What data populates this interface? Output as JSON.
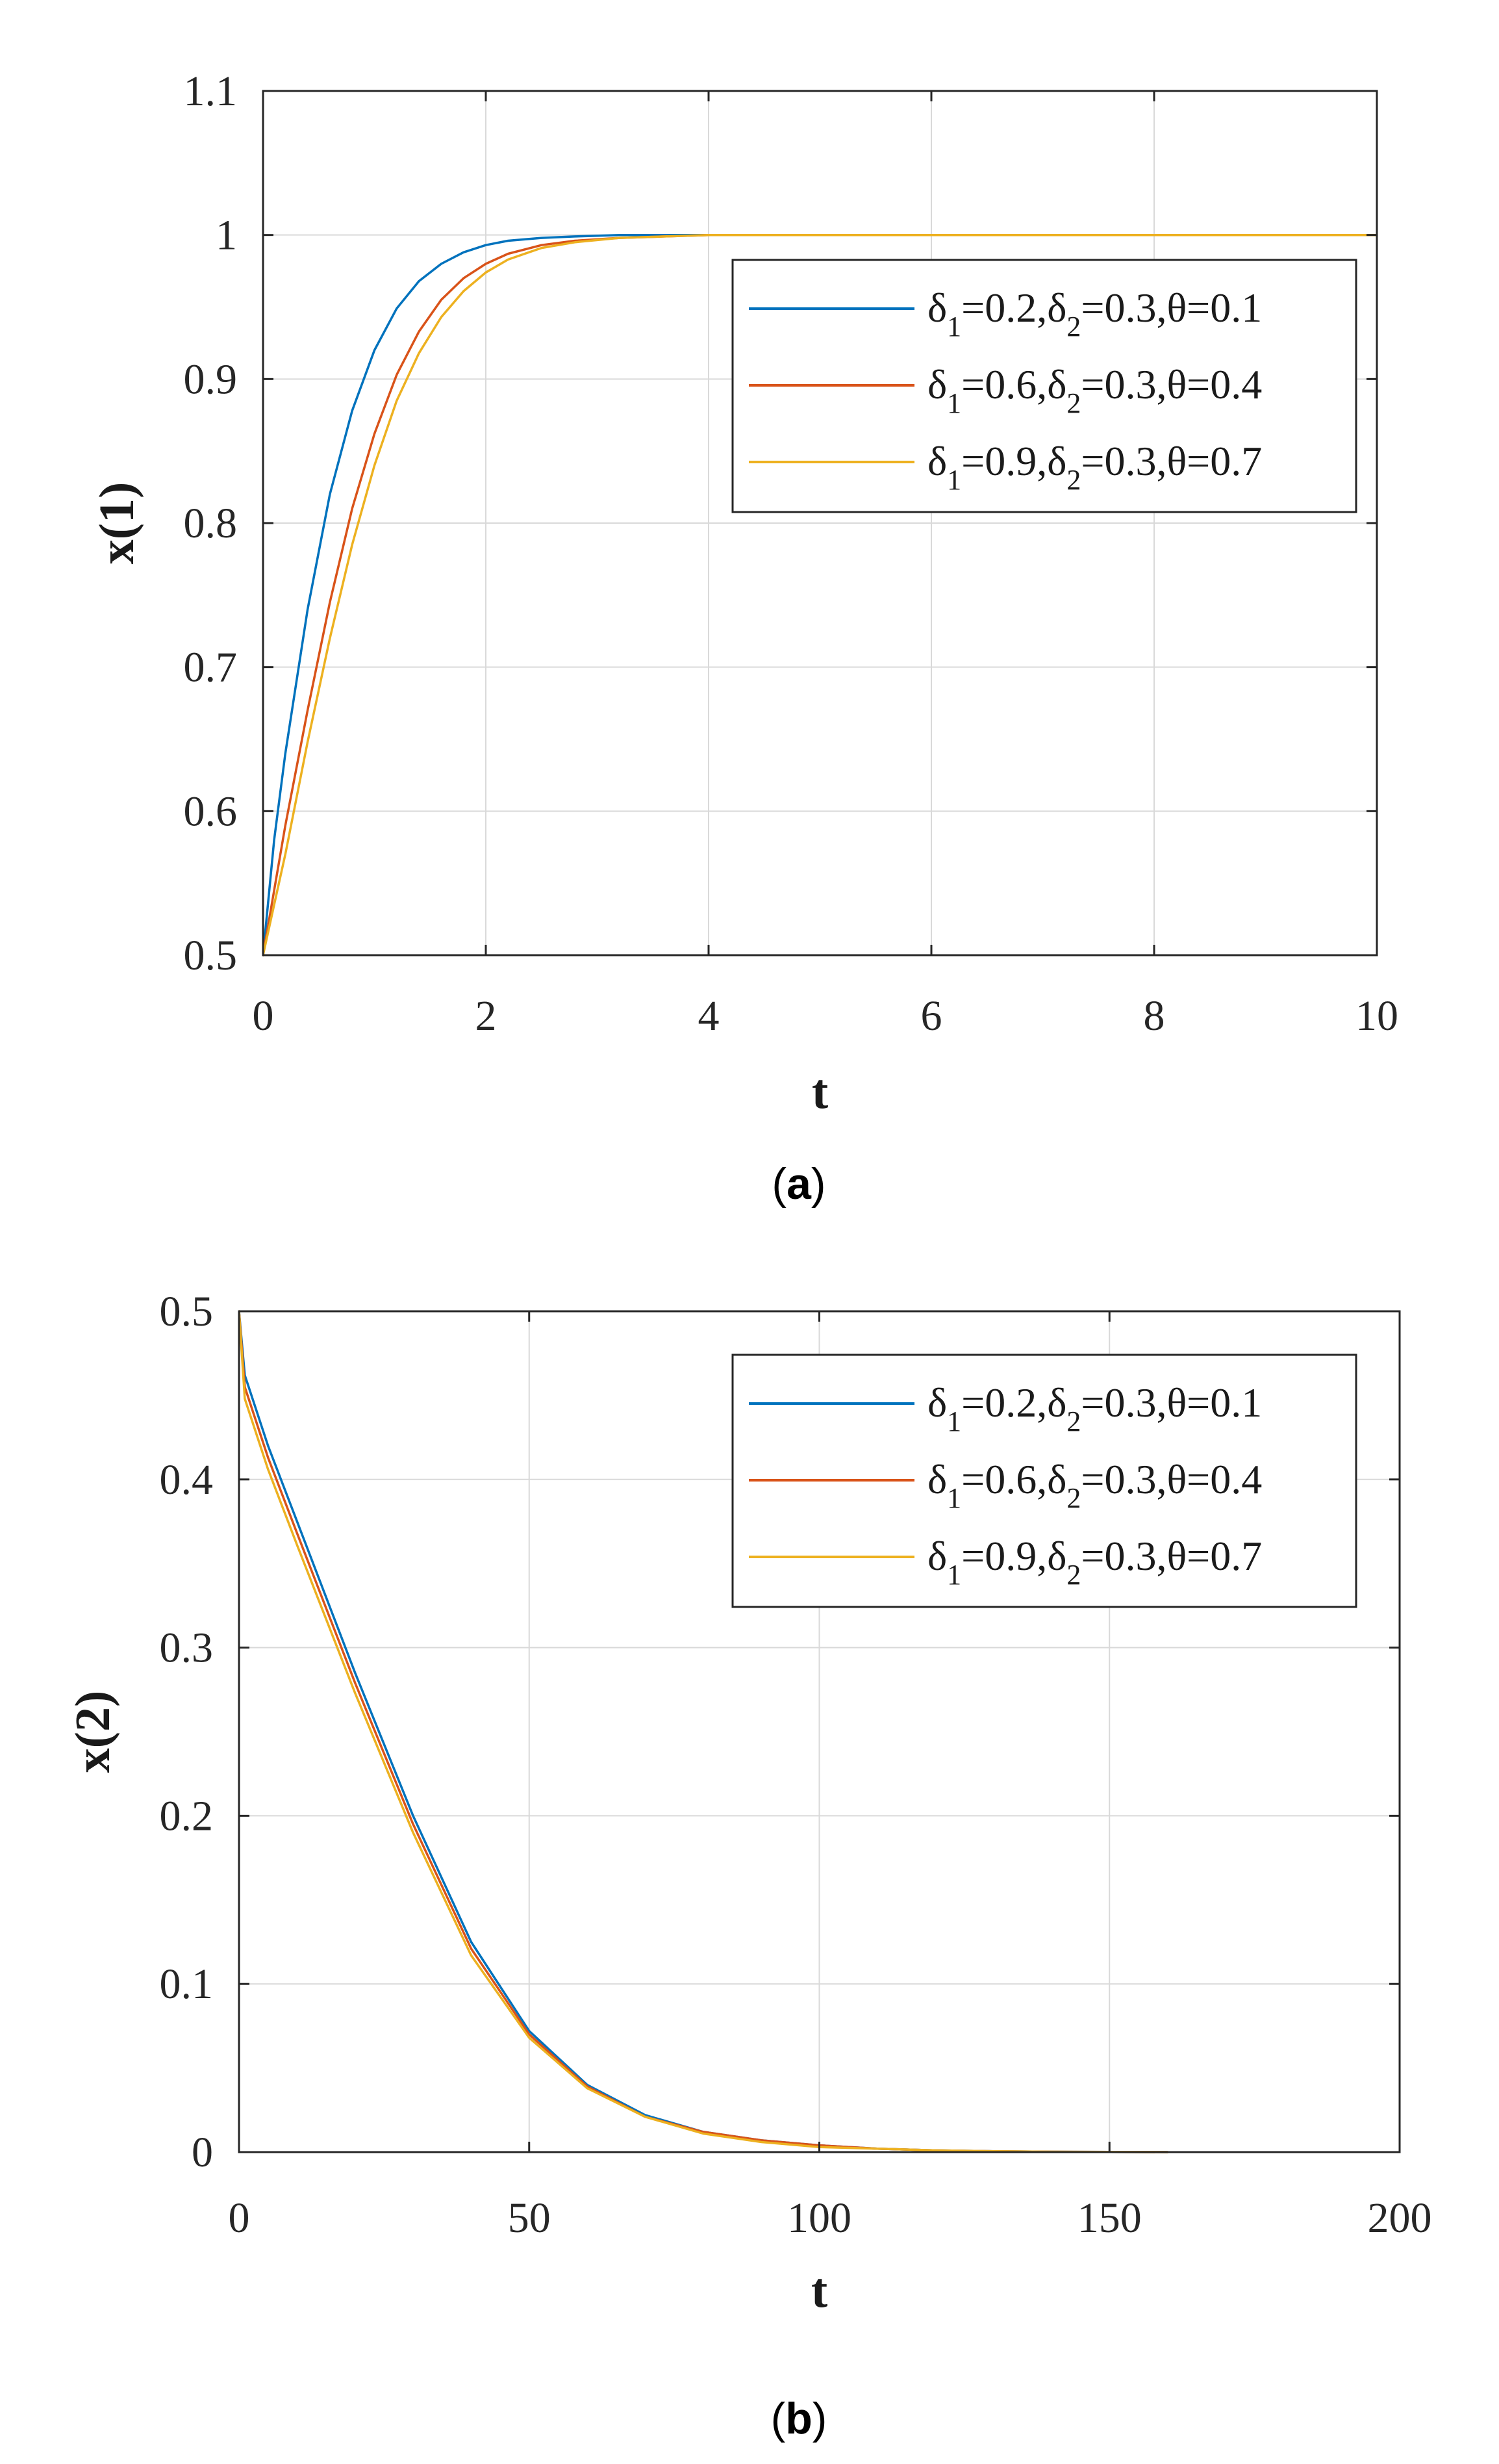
{
  "chart_data": [
    {
      "type": "line",
      "caption_letter": "a",
      "xlabel": "t",
      "ylabel": "x(1)",
      "xlim": [
        0,
        10
      ],
      "ylim": [
        0.5,
        1.1
      ],
      "xticks": [
        0,
        2,
        4,
        6,
        8,
        10
      ],
      "xtick_labels": [
        "0",
        "2",
        "4",
        "6",
        "8",
        "10"
      ],
      "yticks": [
        0.5,
        0.6,
        0.7,
        0.8,
        0.9,
        1.0,
        1.1
      ],
      "ytick_labels": [
        "0.5",
        "0.6",
        "0.7",
        "0.8",
        "0.9",
        "1",
        "1.1"
      ],
      "grid": true,
      "legend_position": "top-right",
      "series": [
        {
          "name": "δ1=0.2,δ2=0.3,θ=0.1",
          "legend": {
            "delta1": "0.2",
            "delta2": "0.3",
            "theta": "0.1"
          },
          "color": "#0072BD",
          "x": [
            0,
            0.1,
            0.2,
            0.4,
            0.6,
            0.8,
            1.0,
            1.2,
            1.4,
            1.6,
            1.8,
            2.0,
            2.2,
            2.5,
            2.8,
            3.2,
            4.0,
            6.0,
            8.0,
            10.0
          ],
          "y": [
            0.5,
            0.58,
            0.64,
            0.74,
            0.82,
            0.878,
            0.92,
            0.949,
            0.968,
            0.98,
            0.988,
            0.993,
            0.996,
            0.998,
            0.999,
            1.0,
            1.0,
            1.0,
            1.0,
            1.0
          ]
        },
        {
          "name": "δ1=0.6,δ2=0.3,θ=0.4",
          "legend": {
            "delta1": "0.6",
            "delta2": "0.3",
            "theta": "0.4"
          },
          "color": "#D95319",
          "x": [
            0,
            0.1,
            0.2,
            0.4,
            0.6,
            0.8,
            1.0,
            1.2,
            1.4,
            1.6,
            1.8,
            2.0,
            2.2,
            2.5,
            2.8,
            3.2,
            3.6,
            4.0,
            6.0,
            8.0,
            10.0
          ],
          "y": [
            0.5,
            0.545,
            0.59,
            0.67,
            0.745,
            0.81,
            0.862,
            0.903,
            0.933,
            0.955,
            0.97,
            0.98,
            0.987,
            0.993,
            0.996,
            0.998,
            0.999,
            1.0,
            1.0,
            1.0,
            1.0
          ]
        },
        {
          "name": "δ1=0.9,δ2=0.3,θ=0.7",
          "legend": {
            "delta1": "0.9",
            "delta2": "0.3",
            "theta": "0.7"
          },
          "color": "#EDB120",
          "x": [
            0,
            0.1,
            0.2,
            0.4,
            0.6,
            0.8,
            1.0,
            1.2,
            1.4,
            1.6,
            1.8,
            2.0,
            2.2,
            2.5,
            2.8,
            3.2,
            3.6,
            4.0,
            6.0,
            8.0,
            10.0
          ],
          "y": [
            0.5,
            0.535,
            0.57,
            0.648,
            0.72,
            0.785,
            0.84,
            0.885,
            0.918,
            0.943,
            0.961,
            0.974,
            0.983,
            0.991,
            0.995,
            0.998,
            0.999,
            1.0,
            1.0,
            1.0,
            1.0
          ]
        }
      ]
    },
    {
      "type": "line",
      "caption_letter": "b",
      "xlabel": "t",
      "ylabel": "x(2)",
      "xlim": [
        0,
        200
      ],
      "ylim": [
        0,
        0.5
      ],
      "xticks": [
        0,
        50,
        100,
        150,
        200
      ],
      "xtick_labels": [
        "0",
        "50",
        "100",
        "150",
        "200"
      ],
      "yticks": [
        0,
        0.1,
        0.2,
        0.3,
        0.4,
        0.5
      ],
      "ytick_labels": [
        "0",
        "0.1",
        "0.2",
        "0.3",
        "0.4",
        "0.5"
      ],
      "grid": true,
      "legend_position": "top-right",
      "series": [
        {
          "name": "δ1=0.2,δ2=0.3,θ=0.1",
          "legend": {
            "delta1": "0.2",
            "delta2": "0.3",
            "theta": "0.1"
          },
          "color": "#0072BD",
          "x": [
            0,
            1,
            5,
            10,
            20,
            30,
            40,
            50,
            60,
            70,
            80,
            90,
            100,
            110,
            120,
            130,
            140,
            150,
            160
          ],
          "y": [
            0.5,
            0.462,
            0.42,
            0.375,
            0.285,
            0.2,
            0.125,
            0.072,
            0.04,
            0.022,
            0.012,
            0.007,
            0.004,
            0.002,
            0.001,
            0.0005,
            0.0002,
            0.0001,
            0.0
          ]
        },
        {
          "name": "δ1=0.6,δ2=0.3,θ=0.4",
          "legend": {
            "delta1": "0.6",
            "delta2": "0.3",
            "theta": "0.4"
          },
          "color": "#D95319",
          "x": [
            0,
            1,
            5,
            10,
            20,
            30,
            40,
            50,
            60,
            70,
            80,
            90,
            100,
            110,
            120,
            130,
            140,
            150,
            160
          ],
          "y": [
            0.5,
            0.455,
            0.413,
            0.368,
            0.279,
            0.195,
            0.121,
            0.07,
            0.039,
            0.021,
            0.012,
            0.007,
            0.004,
            0.002,
            0.001,
            0.0005,
            0.0002,
            0.0001,
            0.0
          ]
        },
        {
          "name": "δ1=0.9,δ2=0.3,θ=0.7",
          "legend": {
            "delta1": "0.9",
            "delta2": "0.3",
            "theta": "0.7"
          },
          "color": "#EDB120",
          "x": [
            0,
            1,
            5,
            10,
            20,
            30,
            40,
            50,
            60,
            70,
            80,
            90,
            100,
            110,
            120,
            130,
            140,
            150,
            160
          ],
          "y": [
            0.5,
            0.448,
            0.406,
            0.361,
            0.273,
            0.19,
            0.117,
            0.068,
            0.038,
            0.021,
            0.011,
            0.006,
            0.003,
            0.002,
            0.001,
            0.0005,
            0.0002,
            0.0001,
            0.0
          ]
        }
      ]
    }
  ]
}
